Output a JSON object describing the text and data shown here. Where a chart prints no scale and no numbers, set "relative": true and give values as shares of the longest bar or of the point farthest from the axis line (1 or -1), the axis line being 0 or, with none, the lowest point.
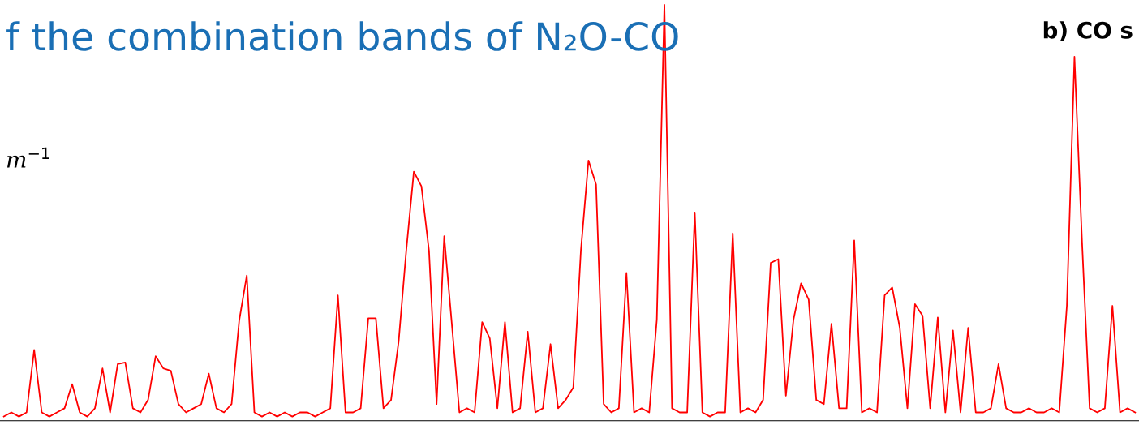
{
  "chart_data": {
    "type": "line",
    "relative": true,
    "title": "f the combination bands of N₂O-CO",
    "annotations": [
      "b) CO s",
      "m$^{−1}$"
    ],
    "categories": [
      null,
      null,
      null,
      null,
      null,
      null,
      null,
      null,
      null,
      null,
      null,
      null,
      null,
      null,
      null,
      null,
      null,
      null,
      null,
      null,
      null,
      null,
      null,
      null,
      null,
      null,
      null,
      null,
      null,
      null,
      null,
      null,
      null,
      null,
      null,
      null,
      null,
      null,
      null,
      null,
      null,
      null,
      null,
      null,
      null,
      null,
      null,
      null,
      null,
      null,
      null,
      null,
      null,
      null,
      null,
      null,
      null,
      null,
      null,
      null,
      null,
      null,
      null,
      null,
      null,
      null,
      null,
      null,
      null,
      null,
      null,
      null,
      null,
      null,
      null,
      null,
      null,
      null,
      null,
      null,
      null,
      null,
      null,
      null,
      null,
      null,
      null,
      null,
      null,
      null,
      null,
      null,
      null,
      null,
      null,
      null,
      null,
      null,
      null,
      null,
      null,
      null,
      null,
      null,
      null,
      null,
      null,
      null,
      null,
      null,
      null,
      null,
      null,
      null,
      null,
      null,
      null,
      null,
      null,
      null,
      null,
      null,
      null,
      null,
      null,
      null,
      null,
      null,
      null,
      null,
      null,
      null,
      null,
      null,
      null,
      null,
      null,
      null,
      null,
      null,
      null,
      null,
      null,
      null,
      null,
      null,
      null,
      null,
      null,
      null
    ],
    "series": [
      {
        "color": "#ff0000",
        "values": [
          0.01,
          0.02,
          0.01,
          0.02,
          0.17,
          0.02,
          0.01,
          0.02,
          0.03,
          0.088,
          0.02,
          0.01,
          0.03,
          0.126,
          0.02,
          0.136,
          0.14,
          0.03,
          0.02,
          0.05,
          0.155,
          0.126,
          0.12,
          0.04,
          0.02,
          0.03,
          0.04,
          0.113,
          0.03,
          0.02,
          0.04,
          0.24,
          0.349,
          0.02,
          0.01,
          0.02,
          0.01,
          0.02,
          0.01,
          0.02,
          0.02,
          0.01,
          0.02,
          0.03,
          0.301,
          0.02,
          0.02,
          0.03,
          0.246,
          0.246,
          0.03,
          0.05,
          0.19,
          0.408,
          0.598,
          0.563,
          0.408,
          0.04,
          0.443,
          0.233,
          0.02,
          0.03,
          0.02,
          0.237,
          0.198,
          0.03,
          0.237,
          0.02,
          0.03,
          0.214,
          0.02,
          0.03,
          0.184,
          0.03,
          0.05,
          0.08,
          0.408,
          0.625,
          0.567,
          0.04,
          0.02,
          0.03,
          0.355,
          0.02,
          0.03,
          0.02,
          0.243,
          1.0,
          0.03,
          0.02,
          0.02,
          0.5,
          0.02,
          0.01,
          0.02,
          0.02,
          0.45,
          0.02,
          0.03,
          0.02,
          0.05,
          0.379,
          0.388,
          0.06,
          0.243,
          0.33,
          0.291,
          0.05,
          0.04,
          0.233,
          0.03,
          0.03,
          0.433,
          0.02,
          0.03,
          0.02,
          0.301,
          0.32,
          0.223,
          0.03,
          0.28,
          0.252,
          0.03,
          0.248,
          0.02,
          0.217,
          0.02,
          0.223,
          0.02,
          0.02,
          0.03,
          0.136,
          0.03,
          0.02,
          0.02,
          0.03,
          0.02,
          0.02,
          0.03,
          0.02,
          0.276,
          0.874,
          0.429,
          0.03,
          0.02,
          0.03,
          0.276,
          0.02,
          0.03,
          0.02
        ]
      }
    ]
  }
}
